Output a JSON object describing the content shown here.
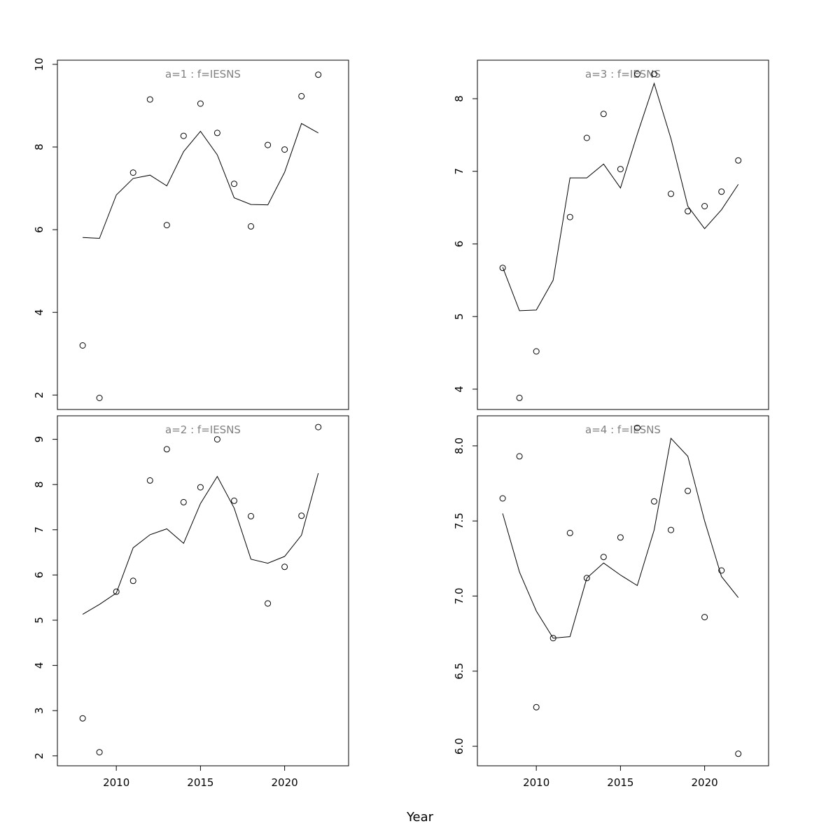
{
  "figure": {
    "xlabel": "Year"
  },
  "chart_data": [
    {
      "type": "scatter",
      "title": "a=1  :  f=IESNS",
      "xlabel": "",
      "ylabel": "",
      "xlim": [
        2006.5,
        2023.8
      ],
      "ylim": [
        1.65,
        10.1
      ],
      "xticks": [],
      "yticks": [
        2,
        4,
        6,
        8,
        10
      ],
      "x": [
        2008,
        2009,
        2010,
        2011,
        2012,
        2013,
        2014,
        2015,
        2016,
        2017,
        2018,
        2019,
        2020,
        2021,
        2022
      ],
      "series": [
        {
          "kind": "points",
          "values": [
            3.2,
            1.93,
            null,
            7.38,
            9.15,
            6.11,
            8.27,
            9.05,
            8.34,
            7.11,
            6.08,
            8.05,
            7.94,
            9.23,
            9.75
          ]
        },
        {
          "kind": "line",
          "values": [
            5.81,
            5.79,
            6.84,
            7.24,
            7.32,
            7.06,
            7.89,
            8.38,
            7.81,
            6.77,
            6.61,
            6.6,
            7.39,
            8.57,
            8.34
          ]
        }
      ]
    },
    {
      "type": "scatter",
      "title": "a=3  :  f=IESNS",
      "xlabel": "",
      "ylabel": "",
      "xlim": [
        2006.5,
        2023.8
      ],
      "ylim": [
        3.72,
        8.53
      ],
      "xticks": [],
      "yticks": [
        4,
        5,
        6,
        7,
        8
      ],
      "x": [
        2008,
        2009,
        2010,
        2011,
        2012,
        2013,
        2014,
        2015,
        2016,
        2017,
        2018,
        2019,
        2020,
        2021,
        2022
      ],
      "series": [
        {
          "kind": "points",
          "values": [
            5.67,
            3.88,
            4.52,
            null,
            6.37,
            7.46,
            7.79,
            7.03,
            8.34,
            8.34,
            6.69,
            6.45,
            6.52,
            6.72,
            7.15
          ]
        },
        {
          "kind": "line",
          "values": [
            5.68,
            5.08,
            5.09,
            5.5,
            6.91,
            6.91,
            7.1,
            6.77,
            7.51,
            8.21,
            7.45,
            6.52,
            6.21,
            6.47,
            6.82
          ]
        }
      ]
    },
    {
      "type": "scatter",
      "title": "a=2  :  f=IESNS",
      "xlabel": "",
      "ylabel": "",
      "xlim": [
        2006.5,
        2023.8
      ],
      "ylim": [
        1.78,
        9.52
      ],
      "xticks": [
        2010,
        2015,
        2020
      ],
      "yticks": [
        2,
        3,
        4,
        5,
        6,
        7,
        8,
        9
      ],
      "x": [
        2008,
        2009,
        2010,
        2011,
        2012,
        2013,
        2014,
        2015,
        2016,
        2017,
        2018,
        2019,
        2020,
        2021,
        2022
      ],
      "series": [
        {
          "kind": "points",
          "values": [
            2.83,
            2.08,
            5.63,
            5.87,
            8.09,
            8.78,
            7.61,
            7.94,
            9.0,
            7.64,
            7.3,
            5.37,
            6.18,
            7.31,
            9.27
          ]
        },
        {
          "kind": "line",
          "values": [
            5.13,
            5.35,
            5.6,
            6.6,
            6.89,
            7.02,
            6.7,
            7.58,
            8.18,
            7.48,
            6.35,
            6.26,
            6.41,
            6.88,
            8.25
          ]
        }
      ]
    },
    {
      "type": "scatter",
      "title": "a=4  :  f=IESNS",
      "xlabel": "",
      "ylabel": "",
      "xlim": [
        2006.5,
        2023.8
      ],
      "ylim": [
        5.87,
        8.2
      ],
      "xticks": [
        2010,
        2015,
        2020
      ],
      "yticks": [
        6.0,
        6.5,
        7.0,
        7.5,
        8.0
      ],
      "x": [
        2008,
        2009,
        2010,
        2011,
        2012,
        2013,
        2014,
        2015,
        2016,
        2017,
        2018,
        2019,
        2020,
        2021,
        2022
      ],
      "series": [
        {
          "kind": "points",
          "values": [
            7.65,
            7.93,
            6.26,
            6.72,
            7.42,
            7.12,
            7.26,
            7.39,
            8.12,
            7.63,
            7.44,
            7.7,
            6.86,
            7.17,
            5.95
          ]
        },
        {
          "kind": "line",
          "values": [
            7.55,
            7.16,
            6.9,
            6.72,
            6.73,
            7.12,
            7.22,
            7.14,
            7.07,
            7.44,
            8.05,
            7.93,
            7.5,
            7.13,
            6.99
          ]
        }
      ]
    }
  ]
}
